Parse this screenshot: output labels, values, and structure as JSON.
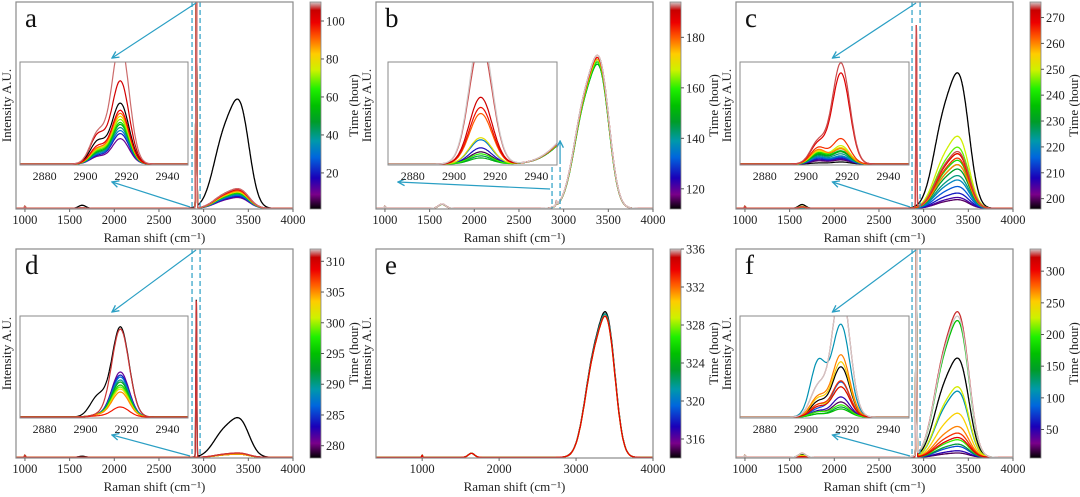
{
  "chart_data": [
    {
      "type": "line",
      "panel": "a",
      "xlabel": "Raman shift (cm⁻¹)",
      "ylabel": "Intensity A.U.",
      "xlim": [
        900,
        4000
      ],
      "xticks": [
        "1000",
        "1500",
        "2000",
        "2500",
        "3000",
        "3500",
        "4000"
      ],
      "colorbar": {
        "label": "Time (hour)",
        "range": [
          1,
          110
        ],
        "ticks": [
          "20",
          "40",
          "60",
          "80",
          "100"
        ]
      },
      "inset": {
        "xlim": [
          2868,
          2950
        ],
        "xticks": [
          "2880",
          "2900",
          "2920",
          "2940"
        ]
      },
      "series": [
        {
          "t": 1,
          "oh": 0.5,
          "ch": 1.3,
          "pk": 0.6,
          "sh": 0.22
        },
        {
          "t": 10,
          "oh": 0.05,
          "ch": 1.3,
          "pk": 0.25,
          "sh": 0.07
        },
        {
          "t": 20,
          "oh": 0.055,
          "ch": 1.3,
          "pk": 0.3,
          "sh": 0.08
        },
        {
          "t": 30,
          "oh": 0.06,
          "ch": 1.3,
          "pk": 0.33,
          "sh": 0.09
        },
        {
          "t": 40,
          "oh": 0.065,
          "ch": 1.3,
          "pk": 0.36,
          "sh": 0.1
        },
        {
          "t": 50,
          "oh": 0.07,
          "ch": 1.3,
          "pk": 0.39,
          "sh": 0.11
        },
        {
          "t": 60,
          "oh": 0.07,
          "ch": 1.3,
          "pk": 0.41,
          "sh": 0.12
        },
        {
          "t": 70,
          "oh": 0.075,
          "ch": 1.3,
          "pk": 0.44,
          "sh": 0.13
        },
        {
          "t": 80,
          "oh": 0.075,
          "ch": 1.3,
          "pk": 0.47,
          "sh": 0.14
        },
        {
          "t": 90,
          "oh": 0.08,
          "ch": 1.3,
          "pk": 0.5,
          "sh": 0.15
        },
        {
          "t": 100,
          "oh": 0.085,
          "ch": 1.3,
          "pk": 0.53,
          "sh": 0.17
        },
        {
          "t": 104,
          "oh": 0.09,
          "ch": 1.3,
          "pk": 0.82,
          "sh": 0.28
        },
        {
          "t": 108,
          "oh": 0.09,
          "ch": 1.3,
          "pk": 1.2,
          "sh": 0.3
        }
      ]
    },
    {
      "type": "line",
      "panel": "b",
      "xlabel": "Raman shift (cm⁻¹)",
      "ylabel": "Intensity A.U.",
      "xlim": [
        900,
        4000
      ],
      "xticks": [
        "1000",
        "1500",
        "2000",
        "2500",
        "3000",
        "3500",
        "4000"
      ],
      "colorbar": {
        "label": "Time (hour)",
        "range": [
          112,
          194
        ],
        "ticks": [
          "120",
          "140",
          "160",
          "180"
        ]
      },
      "inset": {
        "xlim": [
          2868,
          2950
        ],
        "xticks": [
          "2880",
          "2900",
          "2920",
          "2940"
        ]
      },
      "series": [
        {
          "t": 115,
          "oh": 0.68,
          "ch": 0.02,
          "pk": 0.12,
          "tail": 0.4
        },
        {
          "t": 125,
          "oh": 0.68,
          "ch": 0.02,
          "pk": 0.16,
          "tail": 0.4
        },
        {
          "t": 135,
          "oh": 0.67,
          "ch": 0.02,
          "pk": 0.24,
          "tail": 0.41
        },
        {
          "t": 145,
          "oh": 0.66,
          "ch": 0.02,
          "pk": 0.08,
          "tail": 0.4
        },
        {
          "t": 150,
          "oh": 0.66,
          "ch": 0.02,
          "pk": 0.06,
          "tail": 0.4
        },
        {
          "t": 160,
          "oh": 0.67,
          "ch": 0.02,
          "pk": 0.1,
          "tail": 0.41
        },
        {
          "t": 170,
          "oh": 0.68,
          "ch": 0.02,
          "pk": 0.26,
          "tail": 0.42
        },
        {
          "t": 180,
          "oh": 0.69,
          "ch": 0.02,
          "pk": 0.5,
          "tail": 0.43
        },
        {
          "t": 185,
          "oh": 0.69,
          "ch": 0.02,
          "pk": 0.56,
          "tail": 0.43
        },
        {
          "t": 190,
          "oh": 0.7,
          "ch": 0.02,
          "pk": 0.66,
          "tail": 0.44
        },
        {
          "t": 192,
          "oh": 0.7,
          "ch": 0.02,
          "pk": 1.2,
          "tail": 0.45
        },
        {
          "t": 194,
          "oh": 0.7,
          "ch": 0.02,
          "pk": 1.3,
          "tail": 0.45
        }
      ]
    },
    {
      "type": "line",
      "panel": "c",
      "xlabel": "Raman shift (cm⁻¹)",
      "ylabel": "Intensity A.U.",
      "xlim": [
        900,
        4000
      ],
      "xticks": [
        "1000",
        "1500",
        "2000",
        "2500",
        "3000",
        "3500",
        "4000"
      ],
      "colorbar": {
        "label": "Time (hour)",
        "range": [
          196,
          276
        ],
        "ticks": [
          "200",
          "210",
          "220",
          "230",
          "240",
          "250",
          "260",
          "270"
        ]
      },
      "inset": {
        "xlim": [
          2868,
          2950
        ],
        "xticks": [
          "2880",
          "2900",
          "2920",
          "2940"
        ]
      },
      "series": [
        {
          "t": 196,
          "oh": 0.62,
          "ch": 0,
          "pk": 0.02,
          "sh": 0.01
        },
        {
          "t": 200,
          "oh": 0.04,
          "ch": 0,
          "pk": 0.04,
          "sh": 0.03
        },
        {
          "t": 205,
          "oh": 0.05,
          "ch": 0,
          "pk": 0.05,
          "sh": 0.04
        },
        {
          "t": 210,
          "oh": 0.07,
          "ch": 0,
          "pk": 0.06,
          "sh": 0.05
        },
        {
          "t": 215,
          "oh": 0.1,
          "ch": 0,
          "pk": 0.07,
          "sh": 0.06
        },
        {
          "t": 220,
          "oh": 0.13,
          "ch": 0,
          "pk": 0.08,
          "sh": 0.07
        },
        {
          "t": 225,
          "oh": 0.15,
          "ch": 0,
          "pk": 0.1,
          "sh": 0.08
        },
        {
          "t": 230,
          "oh": 0.18,
          "ch": 0,
          "pk": 0.12,
          "sh": 0.09
        },
        {
          "t": 235,
          "oh": 0.2,
          "ch": 0,
          "pk": 0.13,
          "sh": 0.1
        },
        {
          "t": 240,
          "oh": 0.22,
          "ch": 0,
          "pk": 0.15,
          "sh": 0.11
        },
        {
          "t": 245,
          "oh": 0.28,
          "ch": 0,
          "pk": 0.16,
          "sh": 0.12
        },
        {
          "t": 250,
          "oh": 0.33,
          "ch": 0,
          "pk": 0.18,
          "sh": 0.12
        },
        {
          "t": 255,
          "oh": 0.25,
          "ch": 0,
          "pk": 0.16,
          "sh": 0.13
        },
        {
          "t": 260,
          "oh": 0.2,
          "ch": 0,
          "pk": 0.15,
          "sh": 0.14
        },
        {
          "t": 265,
          "oh": 0.23,
          "ch": 0,
          "pk": 0.25,
          "sh": 0.16
        },
        {
          "t": 270,
          "oh": 0.25,
          "ch": 0.88,
          "pk": 0.9,
          "sh": 0.2
        },
        {
          "t": 274,
          "oh": 0.26,
          "ch": 0.88,
          "pk": 1.0,
          "sh": 0.22
        }
      ]
    },
    {
      "type": "line",
      "panel": "d",
      "xlabel": "Raman shift (cm⁻¹)",
      "ylabel": "Intensity A.U.",
      "xlim": [
        900,
        4000
      ],
      "xticks": [
        "1000",
        "1500",
        "2000",
        "2500",
        "3000",
        "3500",
        "4000"
      ],
      "colorbar": {
        "label": "Time (hour)",
        "range": [
          278,
          312
        ],
        "ticks": [
          "280",
          "285",
          "290",
          "295",
          "300",
          "305",
          "310"
        ]
      },
      "inset": {
        "xlim": [
          2868,
          2950
        ],
        "xticks": [
          "2880",
          "2900",
          "2920",
          "2940"
        ]
      },
      "series": [
        {
          "t": 278,
          "oh": 0.18,
          "ch": 0.75,
          "pk": 0.9,
          "sh": 0.2
        },
        {
          "t": 281,
          "oh": 0.015,
          "ch": 0,
          "pk": 0.45,
          "sh": 0.02
        },
        {
          "t": 284,
          "oh": 0.015,
          "ch": 0,
          "pk": 0.42,
          "sh": 0.02
        },
        {
          "t": 287,
          "oh": 0.015,
          "ch": 0,
          "pk": 0.4,
          "sh": 0.02
        },
        {
          "t": 290,
          "oh": 0.015,
          "ch": 0,
          "pk": 0.37,
          "sh": 0.02
        },
        {
          "t": 293,
          "oh": 0.015,
          "ch": 0,
          "pk": 0.35,
          "sh": 0.02
        },
        {
          "t": 296,
          "oh": 0.015,
          "ch": 0,
          "pk": 0.32,
          "sh": 0.02
        },
        {
          "t": 299,
          "oh": 0.015,
          "ch": 0,
          "pk": 0.3,
          "sh": 0.02
        },
        {
          "t": 302,
          "oh": 0.015,
          "ch": 0,
          "pk": 0.28,
          "sh": 0.02
        },
        {
          "t": 305,
          "oh": 0.015,
          "ch": 0,
          "pk": 0.25,
          "sh": 0.02
        },
        {
          "t": 308,
          "oh": 0.02,
          "ch": 0,
          "pk": 0.1,
          "sh": 0.01
        },
        {
          "t": 311,
          "oh": 0.02,
          "ch": 0.75,
          "pk": 0.88,
          "sh": 0.02
        }
      ]
    },
    {
      "type": "line",
      "panel": "e",
      "xlabel": "Raman shift (cm⁻¹)",
      "ylabel": "Intensity A.U.",
      "xlim": [
        400,
        4000
      ],
      "xticks": [
        "1000",
        "2000",
        "3000",
        "4000"
      ],
      "colorbar": {
        "label": "Time (hour)",
        "range": [
          314,
          336
        ],
        "ticks": [
          "316",
          "320",
          "324",
          "328",
          "332",
          "336"
        ]
      },
      "series": [
        {
          "t": 314,
          "oh": 0.66,
          "ch": 0
        },
        {
          "t": 318,
          "oh": 0.65,
          "ch": 0
        },
        {
          "t": 322,
          "oh": 0.65,
          "ch": 0
        },
        {
          "t": 326,
          "oh": 0.64,
          "ch": 0
        },
        {
          "t": 330,
          "oh": 0.64,
          "ch": 0
        },
        {
          "t": 334,
          "oh": 0.64,
          "ch": 0
        }
      ]
    },
    {
      "type": "line",
      "panel": "f",
      "xlabel": "Raman shift (cm⁻¹)",
      "ylabel": "Intensity A.U.",
      "xlim": [
        900,
        4000
      ],
      "xticks": [
        "1000",
        "1500",
        "2000",
        "2500",
        "3000",
        "3500",
        "4000"
      ],
      "colorbar": {
        "label": "Time (hour)",
        "range": [
          5,
          335
        ],
        "ticks": [
          "50",
          "100",
          "150",
          "200",
          "250",
          "300"
        ]
      },
      "inset": {
        "xlim": [
          2868,
          2950
        ],
        "xticks": [
          "2880",
          "2900",
          "2920",
          "2940"
        ]
      },
      "series": [
        {
          "t": 5,
          "oh": 0.45,
          "ch": 1.3,
          "pk": 0.5,
          "sh": 0.15
        },
        {
          "t": 20,
          "oh": 0.02,
          "ch": 1.3,
          "pk": 0.15,
          "sh": 0.05
        },
        {
          "t": 50,
          "oh": 0.03,
          "ch": 1.3,
          "pk": 0.2,
          "sh": 0.06
        },
        {
          "t": 80,
          "oh": 0.05,
          "ch": 1.3,
          "pk": 0.35,
          "sh": 0.08
        },
        {
          "t": 110,
          "oh": 0.3,
          "ch": 1.3,
          "pk": 0.92,
          "sh": 0.55
        },
        {
          "t": 140,
          "oh": 0.06,
          "ch": 1.3,
          "pk": 0.1,
          "sh": 0.03
        },
        {
          "t": 170,
          "oh": 0.62,
          "ch": 1.3,
          "pk": 0.08,
          "sh": 0.03
        },
        {
          "t": 200,
          "oh": 0.08,
          "ch": 1.3,
          "pk": 0.12,
          "sh": 0.05
        },
        {
          "t": 230,
          "oh": 0.32,
          "ch": 1.3,
          "pk": 0.3,
          "sh": 0.12
        },
        {
          "t": 250,
          "oh": 0.2,
          "ch": 1.3,
          "pk": 0.55,
          "sh": 0.18
        },
        {
          "t": 270,
          "oh": 0.14,
          "ch": 1.3,
          "pk": 0.62,
          "sh": 0.2
        },
        {
          "t": 290,
          "oh": 0.11,
          "ch": 1.3,
          "pk": 0.36,
          "sh": 0.12
        },
        {
          "t": 310,
          "oh": 0.09,
          "ch": 1.3,
          "pk": 0.3,
          "sh": 0.1
        },
        {
          "t": 325,
          "oh": 0.66,
          "ch": 1.3,
          "pk": 1.3,
          "sh": 0.3
        },
        {
          "t": 335,
          "oh": 0.64,
          "ch": 1.3,
          "pk": 1.3,
          "sh": 0.3
        }
      ]
    }
  ]
}
